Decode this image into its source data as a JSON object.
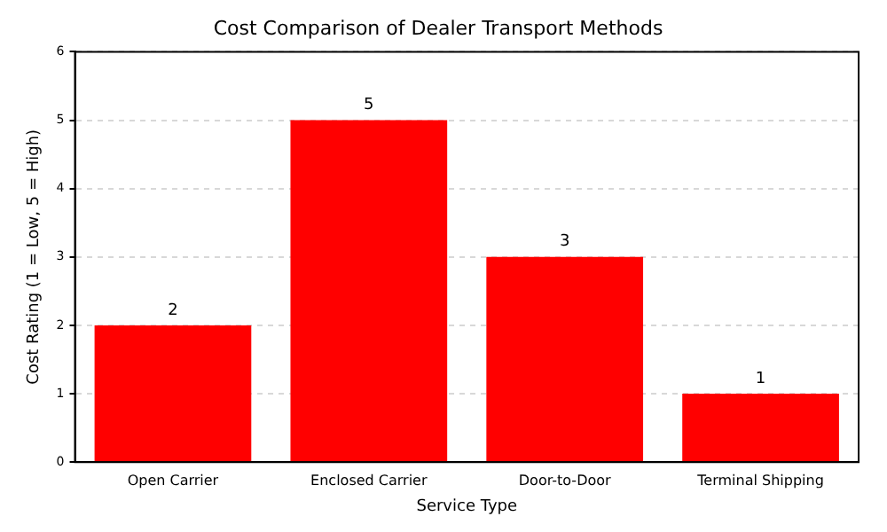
{
  "chart_data": {
    "type": "bar",
    "title": "Cost Comparison of Dealer Transport Methods",
    "xlabel": "Service Type",
    "ylabel": "Cost Rating (1 = Low, 5 = High)",
    "categories": [
      "Open Carrier",
      "Enclosed Carrier",
      "Door-to-Door",
      "Terminal Shipping"
    ],
    "values": [
      2,
      5,
      3,
      1
    ],
    "color": "#ff0000",
    "ylim": [
      0,
      6
    ],
    "yticks": [
      0,
      1,
      2,
      3,
      4,
      5,
      6
    ],
    "grid": "y",
    "data_labels": true,
    "legend": false
  }
}
